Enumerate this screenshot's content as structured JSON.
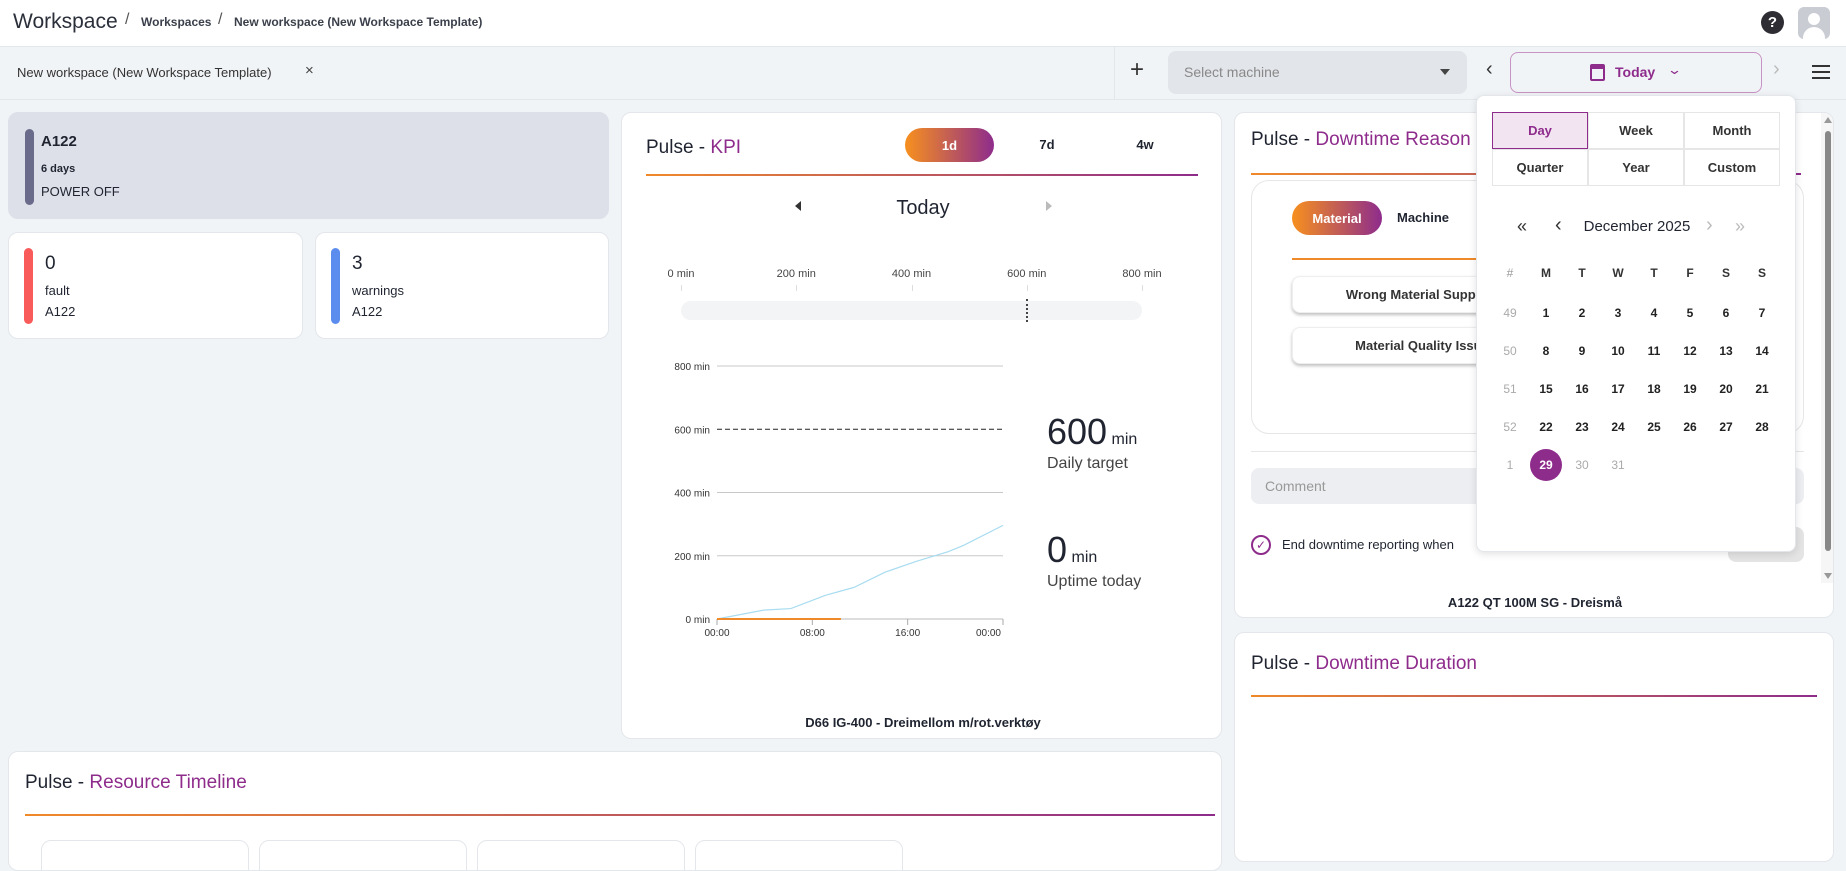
{
  "header": {
    "title": "Workspace",
    "breadcrumbs": [
      "Workspaces",
      "New workspace (New Workspace Template)"
    ]
  },
  "tabbar": {
    "tab_label": "New workspace (New Workspace Template)",
    "machine_placeholder": "Select machine",
    "date_label": "Today"
  },
  "status_card": {
    "machine": "A122",
    "duration": "6 days",
    "state": "POWER OFF",
    "color": "#6a6a8a"
  },
  "fault_card": {
    "count": "0",
    "label": "fault",
    "machine": "A122",
    "color": "#f95b5b"
  },
  "warnings_card": {
    "count": "3",
    "label": "warnings",
    "machine": "A122",
    "color": "#5b8def"
  },
  "kpi": {
    "prefix": "Pulse",
    "title": "KPI",
    "ranges": [
      "1d",
      "7d",
      "4w"
    ],
    "active_range": "1d",
    "period": "Today",
    "target_value": "600",
    "target_unit": "min",
    "target_label": "Daily target",
    "uptime_value": "0",
    "uptime_unit": "min",
    "uptime_label": "Uptime today",
    "footer": "D66 IG-400 - Dreimellom m/rot.verktøy",
    "progress_ticks": [
      "0 min",
      "200 min",
      "400 min",
      "600 min",
      "800 min"
    ]
  },
  "chart_data": {
    "type": "line",
    "xlabel": "",
    "ylabel": "",
    "x_ticks": [
      "00:00",
      "08:00",
      "16:00",
      "00:00"
    ],
    "y_ticks": [
      "0 min",
      "200 min",
      "400 min",
      "600 min",
      "800 min"
    ],
    "ylim": [
      0,
      800
    ],
    "xlim_hours": [
      0,
      24
    ],
    "target": 600,
    "grid": true,
    "series": [
      {
        "color": "#a8dcf0",
        "points": [
          [
            0,
            0
          ],
          [
            3.9,
            28
          ],
          [
            6.2,
            33
          ],
          [
            9.1,
            75
          ],
          [
            11.5,
            100
          ],
          [
            14.1,
            148
          ],
          [
            16.7,
            182
          ],
          [
            19.4,
            213
          ],
          [
            20.7,
            233
          ],
          [
            24,
            296
          ]
        ]
      },
      {
        "color": "#f0892a",
        "points": [
          [
            0,
            0
          ],
          [
            10.4,
            0
          ]
        ]
      }
    ]
  },
  "downtime_reason": {
    "prefix": "Pulse",
    "title": "Downtime Reason",
    "tabs": [
      "Material",
      "Machine"
    ],
    "reasons": [
      "Wrong Material Supplied",
      "Material Quality Issue"
    ],
    "comment_placeholder": "Comment",
    "end_label": "End downtime reporting when",
    "footer": "A122 QT 100M SG - Dreismå"
  },
  "downtime_duration": {
    "prefix": "Pulse",
    "title": "Downtime Duration"
  },
  "resource_timeline": {
    "prefix": "Pulse",
    "title": "Resource Timeline"
  },
  "calendar": {
    "periods": [
      "Day",
      "Week",
      "Month",
      "Quarter",
      "Year",
      "Custom"
    ],
    "active_period": "Day",
    "month": "December 2025",
    "weekday_headers": [
      "#",
      "M",
      "T",
      "W",
      "T",
      "F",
      "S",
      "S"
    ],
    "weeks": [
      [
        "49",
        "1",
        "2",
        "3",
        "4",
        "5",
        "6",
        "7"
      ],
      [
        "50",
        "8",
        "9",
        "10",
        "11",
        "12",
        "13",
        "14"
      ],
      [
        "51",
        "15",
        "16",
        "17",
        "18",
        "19",
        "20",
        "21"
      ],
      [
        "52",
        "22",
        "23",
        "24",
        "25",
        "26",
        "27",
        "28"
      ],
      [
        "1",
        "29",
        "30",
        "31"
      ]
    ],
    "selected": "29",
    "accent": "#8e2c8c"
  }
}
